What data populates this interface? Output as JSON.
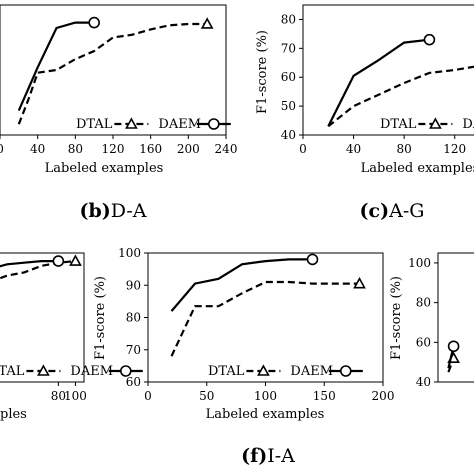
{
  "chart_data": [
    {
      "id": "DA",
      "type": "line",
      "caption_letter": "(b)",
      "caption_text": "D-A",
      "xlabel": "Labeled examples",
      "ylabel": "",
      "xlim": [
        0,
        240
      ],
      "ylim": [
        40,
        88
      ],
      "xticks": [
        0,
        40,
        80,
        120,
        160,
        200,
        240
      ],
      "yticks": [],
      "legend": "bottom-right",
      "series": [
        {
          "name": "DTAL",
          "style": "dashed",
          "marker": "triangle",
          "x": [
            20,
            30,
            40,
            60,
            80,
            100,
            120,
            140,
            160,
            180,
            200,
            220
          ],
          "y": [
            44,
            53,
            63,
            64,
            68,
            71,
            76,
            77,
            79,
            80.5,
            81,
            81
          ]
        },
        {
          "name": "DAEM",
          "style": "solid",
          "marker": "circle",
          "x": [
            20,
            40,
            60,
            80,
            100
          ],
          "y": [
            49,
            65,
            79.5,
            81.5,
            81.5
          ]
        }
      ]
    },
    {
      "id": "AG",
      "type": "line",
      "caption_letter": "(c)",
      "caption_text": "A-G",
      "xlabel": "Labeled examples",
      "ylabel": "F1-score (%)",
      "xlim": [
        0,
        140
      ],
      "ylim": [
        40,
        85
      ],
      "xticks": [
        0,
        40,
        80,
        120
      ],
      "yticks": [
        40,
        50,
        60,
        70,
        80
      ],
      "legend": "bottom-right",
      "series": [
        {
          "name": "DTAL",
          "style": "dashed",
          "marker": "triangle",
          "x": [
            20,
            40,
            60,
            80,
            100,
            120,
            140
          ],
          "y": [
            43,
            50,
            54,
            58,
            61.5,
            62.5,
            64
          ]
        },
        {
          "name": "DAEM",
          "style": "solid",
          "marker": "circle",
          "x": [
            20,
            40,
            60,
            80,
            100
          ],
          "y": [
            43,
            60.5,
            66,
            72,
            73
          ]
        }
      ]
    },
    {
      "id": "E",
      "type": "line",
      "caption_letter": "",
      "caption_text": "",
      "xlabel": "",
      "ylabel": "",
      "xlim": [
        0,
        110
      ],
      "ylim": [
        60,
        100
      ],
      "xticks": [
        80,
        100
      ],
      "yticks": [],
      "legend": "bottom-right",
      "series": [
        {
          "name": "DTAL",
          "style": "dashed",
          "marker": "triangle",
          "x": [
            0,
            20,
            40,
            60,
            80,
            100
          ],
          "y": [
            91,
            93,
            94,
            96,
            97,
            97.5
          ]
        },
        {
          "name": "DAEM",
          "style": "solid",
          "marker": "circle",
          "x": [
            0,
            20,
            40,
            60,
            80
          ],
          "y": [
            95,
            96.5,
            97,
            97.5,
            97.5
          ]
        }
      ]
    },
    {
      "id": "IA",
      "type": "line",
      "caption_letter": "(f)",
      "caption_text": "I-A",
      "xlabel": "Labeled examples",
      "ylabel": "F1-score (%)",
      "xlim": [
        0,
        200
      ],
      "ylim": [
        60,
        100
      ],
      "xticks": [
        0,
        50,
        100,
        150,
        200
      ],
      "yticks": [
        60,
        70,
        80,
        90,
        100
      ],
      "legend": "bottom-right",
      "series": [
        {
          "name": "DTAL",
          "style": "dashed",
          "marker": "triangle",
          "x": [
            20,
            40,
            60,
            80,
            100,
            120,
            140,
            160,
            180
          ],
          "y": [
            68,
            83.5,
            83.5,
            87.5,
            91,
            91,
            90.5,
            90.5,
            90.5
          ]
        },
        {
          "name": "DAEM",
          "style": "solid",
          "marker": "circle",
          "x": [
            20,
            40,
            60,
            80,
            100,
            120,
            140
          ],
          "y": [
            82,
            90.5,
            92,
            96.5,
            97.5,
            98,
            98
          ]
        }
      ]
    },
    {
      "id": "G",
      "type": "line",
      "caption_letter": "",
      "caption_text": "",
      "xlabel": "",
      "ylabel": "F1-score (%)",
      "xlim": [
        0,
        100
      ],
      "ylim": [
        40,
        105
      ],
      "xticks": [],
      "yticks": [
        40,
        60,
        80,
        100
      ],
      "legend": "bottom-right",
      "series": [
        {
          "name": "DTAL",
          "style": "dashed",
          "marker": "triangle",
          "x": [
            20,
            30
          ],
          "y": [
            45,
            52
          ]
        },
        {
          "name": "DAEM",
          "style": "solid",
          "marker": "circle",
          "x": [
            20,
            30
          ],
          "y": [
            47,
            58
          ]
        }
      ]
    }
  ],
  "fragments": {
    "bottom_left_label": "ples"
  }
}
